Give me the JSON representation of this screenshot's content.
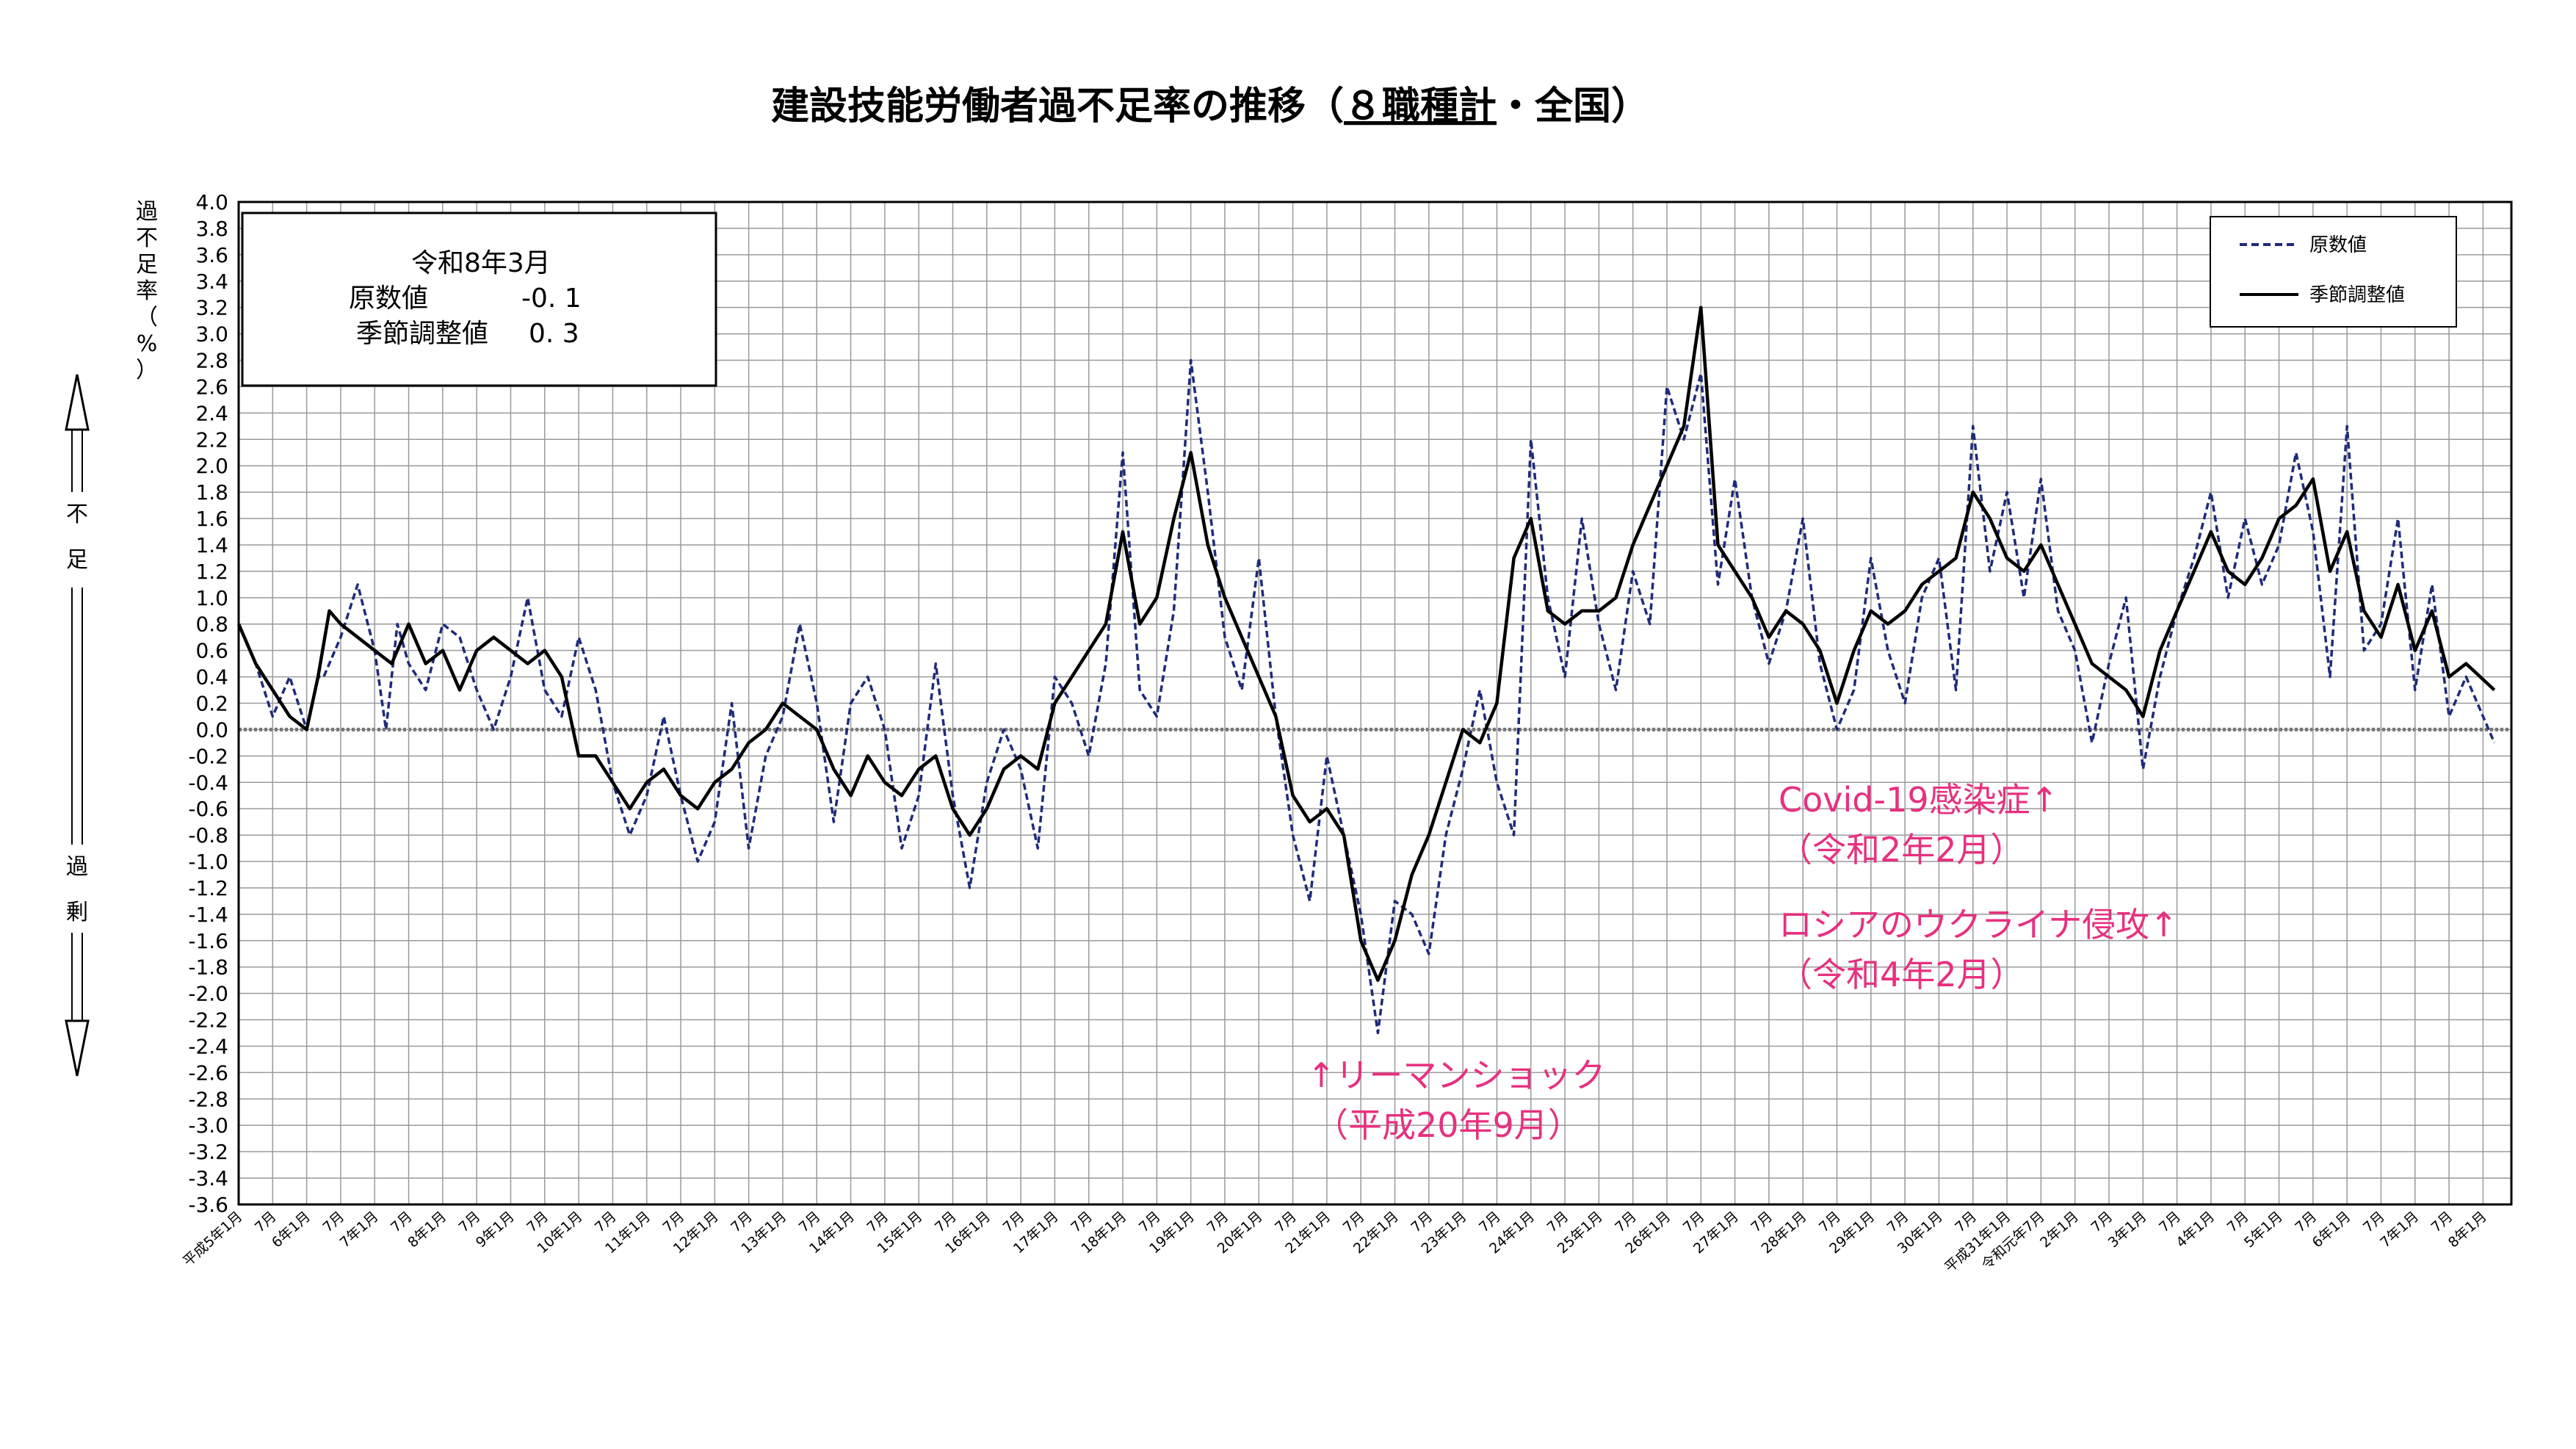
{
  "chart_data": {
    "type": "line",
    "title": "建設技能労働者過不足率の推移（８職種計・全国）",
    "title_main": "建設技能労働者過不足率の推移（",
    "title_underlined": "８職種計",
    "title_tail": "・全国）",
    "ylabel_chars": [
      "過",
      "不",
      "足",
      "率",
      "（",
      "%",
      "）"
    ],
    "side_labels": {
      "top": [
        "不",
        "足"
      ],
      "bottom": [
        "過",
        "剰"
      ]
    },
    "ylim": [
      -3.6,
      4.0
    ],
    "ytick_step": 0.2,
    "grid": true,
    "legend_position": "top-right",
    "info_box": {
      "period": "令和8年3月",
      "rows": [
        {
          "label": "原数値",
          "value": "-0. 1"
        },
        {
          "label": "季節調整値",
          "value": "0. 3"
        }
      ]
    },
    "x_start": "平成5年1月",
    "x_end": "令和8年3月",
    "x_tick_labels": [
      "平成5年1月",
      "7月",
      "6年1月",
      "7月",
      "7年1月",
      "7月",
      "8年1月",
      "7月",
      "9年1月",
      "7月",
      "10年1月",
      "7月",
      "11年1月",
      "7月",
      "12年1月",
      "7月",
      "13年1月",
      "7月",
      "14年1月",
      "7月",
      "15年1月",
      "7月",
      "16年1月",
      "7月",
      "17年1月",
      "7月",
      "18年1月",
      "7月",
      "19年1月",
      "7月",
      "20年1月",
      "7月",
      "21年1月",
      "7月",
      "22年1月",
      "7月",
      "23年1月",
      "7月",
      "24年1月",
      "7月",
      "25年1月",
      "7月",
      "26年1月",
      "7月",
      "27年1月",
      "7月",
      "28年1月",
      "7月",
      "29年1月",
      "7月",
      "30年1月",
      "7月",
      "平成31年1月",
      "令和元年7月",
      "2年1月",
      "7月",
      "3年1月",
      "7月",
      "4年1月",
      "7月",
      "5年1月",
      "7月",
      "6年1月",
      "7月",
      "7年1月",
      "7月",
      "8年1月"
    ],
    "annotations": [
      {
        "lines": [
          "↑リーマンショック",
          "（平成20年9月）"
        ],
        "date": "2008-09"
      },
      {
        "lines": [
          "Covid-19感染症↑",
          "（令和2年2月）"
        ],
        "date": "2020-02"
      },
      {
        "lines": [
          "ロシアのウクライナ侵攻↑",
          "（令和4年2月）"
        ],
        "date": "2022-02"
      }
    ],
    "series": [
      {
        "name": "原数値",
        "style": "dashed",
        "color": "#1f2a7a",
        "points": [
          [
            "1993-01",
            0.8
          ],
          [
            "1993-04",
            0.5
          ],
          [
            "1993-07",
            0.1
          ],
          [
            "1993-10",
            0.4
          ],
          [
            "1994-01",
            0.0
          ],
          [
            "1994-03",
            0.4
          ],
          [
            "1994-04",
            0.4
          ],
          [
            "1994-07",
            0.7
          ],
          [
            "1994-10",
            1.1
          ],
          [
            "1995-01",
            0.6
          ],
          [
            "1995-03",
            0.0
          ],
          [
            "1995-05",
            0.8
          ],
          [
            "1995-07",
            0.5
          ],
          [
            "1995-10",
            0.3
          ],
          [
            "1996-01",
            0.8
          ],
          [
            "1996-04",
            0.7
          ],
          [
            "1996-07",
            0.3
          ],
          [
            "1996-10",
            0.0
          ],
          [
            "1997-01",
            0.4
          ],
          [
            "1997-04",
            1.0
          ],
          [
            "1997-07",
            0.3
          ],
          [
            "1997-10",
            0.1
          ],
          [
            "1998-01",
            0.7
          ],
          [
            "1998-04",
            0.3
          ],
          [
            "1998-07",
            -0.4
          ],
          [
            "1998-10",
            -0.8
          ],
          [
            "1999-01",
            -0.5
          ],
          [
            "1999-04",
            0.1
          ],
          [
            "1999-07",
            -0.5
          ],
          [
            "1999-10",
            -1.0
          ],
          [
            "2000-01",
            -0.7
          ],
          [
            "2000-04",
            0.2
          ],
          [
            "2000-07",
            -0.9
          ],
          [
            "2000-10",
            -0.2
          ],
          [
            "2001-01",
            0.1
          ],
          [
            "2001-04",
            0.8
          ],
          [
            "2001-07",
            0.2
          ],
          [
            "2001-10",
            -0.7
          ],
          [
            "2002-01",
            0.2
          ],
          [
            "2002-04",
            0.4
          ],
          [
            "2002-07",
            0.0
          ],
          [
            "2002-10",
            -0.9
          ],
          [
            "2003-01",
            -0.5
          ],
          [
            "2003-04",
            0.5
          ],
          [
            "2003-07",
            -0.5
          ],
          [
            "2003-10",
            -1.2
          ],
          [
            "2004-01",
            -0.4
          ],
          [
            "2004-04",
            0.0
          ],
          [
            "2004-07",
            -0.3
          ],
          [
            "2004-10",
            -0.9
          ],
          [
            "2005-01",
            0.4
          ],
          [
            "2005-04",
            0.2
          ],
          [
            "2005-07",
            -0.2
          ],
          [
            "2005-10",
            0.5
          ],
          [
            "2006-01",
            2.1
          ],
          [
            "2006-04",
            0.3
          ],
          [
            "2006-07",
            0.1
          ],
          [
            "2006-10",
            0.9
          ],
          [
            "2007-01",
            2.8
          ],
          [
            "2007-04",
            1.8
          ],
          [
            "2007-07",
            0.7
          ],
          [
            "2007-10",
            0.3
          ],
          [
            "2008-01",
            1.3
          ],
          [
            "2008-04",
            0.1
          ],
          [
            "2008-07",
            -0.8
          ],
          [
            "2008-10",
            -1.3
          ],
          [
            "2009-01",
            -0.2
          ],
          [
            "2009-04",
            -0.8
          ],
          [
            "2009-07",
            -1.4
          ],
          [
            "2009-10",
            -2.3
          ],
          [
            "2010-01",
            -1.3
          ],
          [
            "2010-04",
            -1.4
          ],
          [
            "2010-07",
            -1.7
          ],
          [
            "2010-10",
            -0.8
          ],
          [
            "2011-01",
            -0.3
          ],
          [
            "2011-04",
            0.3
          ],
          [
            "2011-07",
            -0.4
          ],
          [
            "2011-10",
            -0.8
          ],
          [
            "2012-01",
            2.2
          ],
          [
            "2012-04",
            1.0
          ],
          [
            "2012-07",
            0.4
          ],
          [
            "2012-10",
            1.6
          ],
          [
            "2013-01",
            0.8
          ],
          [
            "2013-04",
            0.3
          ],
          [
            "2013-07",
            1.2
          ],
          [
            "2013-10",
            0.8
          ],
          [
            "2014-01",
            2.6
          ],
          [
            "2014-04",
            2.2
          ],
          [
            "2014-07",
            2.7
          ],
          [
            "2014-10",
            1.1
          ],
          [
            "2015-01",
            1.9
          ],
          [
            "2015-04",
            1.0
          ],
          [
            "2015-07",
            0.5
          ],
          [
            "2015-10",
            0.9
          ],
          [
            "2016-01",
            1.6
          ],
          [
            "2016-04",
            0.5
          ],
          [
            "2016-07",
            0.0
          ],
          [
            "2016-10",
            0.3
          ],
          [
            "2017-01",
            1.3
          ],
          [
            "2017-04",
            0.6
          ],
          [
            "2017-07",
            0.2
          ],
          [
            "2017-10",
            1.0
          ],
          [
            "2018-01",
            1.3
          ],
          [
            "2018-04",
            0.3
          ],
          [
            "2018-07",
            2.3
          ],
          [
            "2018-10",
            1.2
          ],
          [
            "2019-01",
            1.8
          ],
          [
            "2019-04",
            1.0
          ],
          [
            "2019-07",
            1.9
          ],
          [
            "2019-10",
            0.9
          ],
          [
            "2020-01",
            0.6
          ],
          [
            "2020-04",
            -0.1
          ],
          [
            "2020-07",
            0.5
          ],
          [
            "2020-10",
            1.0
          ],
          [
            "2021-01",
            -0.3
          ],
          [
            "2021-04",
            0.4
          ],
          [
            "2021-07",
            0.9
          ],
          [
            "2021-10",
            1.3
          ],
          [
            "2022-01",
            1.8
          ],
          [
            "2022-04",
            1.0
          ],
          [
            "2022-07",
            1.6
          ],
          [
            "2022-10",
            1.1
          ],
          [
            "2023-01",
            1.4
          ],
          [
            "2023-04",
            2.1
          ],
          [
            "2023-07",
            1.5
          ],
          [
            "2023-10",
            0.4
          ],
          [
            "2024-01",
            2.3
          ],
          [
            "2024-04",
            0.6
          ],
          [
            "2024-07",
            0.8
          ],
          [
            "2024-10",
            1.6
          ],
          [
            "2025-01",
            0.3
          ],
          [
            "2025-04",
            1.1
          ],
          [
            "2025-07",
            0.1
          ],
          [
            "2025-10",
            0.4
          ],
          [
            "2026-03",
            -0.1
          ]
        ]
      },
      {
        "name": "季節調整値",
        "style": "solid",
        "color": "#000000",
        "points": [
          [
            "1993-01",
            0.8
          ],
          [
            "1993-04",
            0.5
          ],
          [
            "1993-07",
            0.3
          ],
          [
            "1993-10",
            0.1
          ],
          [
            "1994-01",
            0.0
          ],
          [
            "1994-03",
            0.4
          ],
          [
            "1994-05",
            0.9
          ],
          [
            "1994-07",
            0.8
          ],
          [
            "1994-10",
            0.7
          ],
          [
            "1995-01",
            0.6
          ],
          [
            "1995-04",
            0.5
          ],
          [
            "1995-07",
            0.8
          ],
          [
            "1995-10",
            0.5
          ],
          [
            "1996-01",
            0.6
          ],
          [
            "1996-04",
            0.3
          ],
          [
            "1996-07",
            0.6
          ],
          [
            "1996-10",
            0.7
          ],
          [
            "1997-01",
            0.6
          ],
          [
            "1997-04",
            0.5
          ],
          [
            "1997-07",
            0.6
          ],
          [
            "1997-10",
            0.4
          ],
          [
            "1998-01",
            -0.2
          ],
          [
            "1998-04",
            -0.2
          ],
          [
            "1998-07",
            -0.4
          ],
          [
            "1998-10",
            -0.6
          ],
          [
            "1999-01",
            -0.4
          ],
          [
            "1999-04",
            -0.3
          ],
          [
            "1999-07",
            -0.5
          ],
          [
            "1999-10",
            -0.6
          ],
          [
            "2000-01",
            -0.4
          ],
          [
            "2000-04",
            -0.3
          ],
          [
            "2000-07",
            -0.1
          ],
          [
            "2000-10",
            0.0
          ],
          [
            "2001-01",
            0.2
          ],
          [
            "2001-04",
            0.1
          ],
          [
            "2001-07",
            0.0
          ],
          [
            "2001-10",
            -0.3
          ],
          [
            "2002-01",
            -0.5
          ],
          [
            "2002-04",
            -0.2
          ],
          [
            "2002-07",
            -0.4
          ],
          [
            "2002-10",
            -0.5
          ],
          [
            "2003-01",
            -0.3
          ],
          [
            "2003-04",
            -0.2
          ],
          [
            "2003-07",
            -0.6
          ],
          [
            "2003-10",
            -0.8
          ],
          [
            "2004-01",
            -0.6
          ],
          [
            "2004-04",
            -0.3
          ],
          [
            "2004-07",
            -0.2
          ],
          [
            "2004-10",
            -0.3
          ],
          [
            "2005-01",
            0.2
          ],
          [
            "2005-04",
            0.4
          ],
          [
            "2005-07",
            0.6
          ],
          [
            "2005-10",
            0.8
          ],
          [
            "2006-01",
            1.5
          ],
          [
            "2006-04",
            0.8
          ],
          [
            "2006-07",
            1.0
          ],
          [
            "2006-10",
            1.6
          ],
          [
            "2007-01",
            2.1
          ],
          [
            "2007-04",
            1.4
          ],
          [
            "2007-07",
            1.0
          ],
          [
            "2007-10",
            0.7
          ],
          [
            "2008-01",
            0.4
          ],
          [
            "2008-04",
            0.1
          ],
          [
            "2008-07",
            -0.5
          ],
          [
            "2008-10",
            -0.7
          ],
          [
            "2009-01",
            -0.6
          ],
          [
            "2009-04",
            -0.8
          ],
          [
            "2009-07",
            -1.6
          ],
          [
            "2009-10",
            -1.9
          ],
          [
            "2010-01",
            -1.6
          ],
          [
            "2010-04",
            -1.1
          ],
          [
            "2010-07",
            -0.8
          ],
          [
            "2010-10",
            -0.4
          ],
          [
            "2011-01",
            0.0
          ],
          [
            "2011-04",
            -0.1
          ],
          [
            "2011-07",
            0.2
          ],
          [
            "2011-10",
            1.3
          ],
          [
            "2012-01",
            1.6
          ],
          [
            "2012-04",
            0.9
          ],
          [
            "2012-07",
            0.8
          ],
          [
            "2012-10",
            0.9
          ],
          [
            "2013-01",
            0.9
          ],
          [
            "2013-04",
            1.0
          ],
          [
            "2013-07",
            1.4
          ],
          [
            "2013-10",
            1.7
          ],
          [
            "2014-01",
            2.0
          ],
          [
            "2014-04",
            2.3
          ],
          [
            "2014-07",
            3.2
          ],
          [
            "2014-10",
            1.4
          ],
          [
            "2015-01",
            1.2
          ],
          [
            "2015-04",
            1.0
          ],
          [
            "2015-07",
            0.7
          ],
          [
            "2015-10",
            0.9
          ],
          [
            "2016-01",
            0.8
          ],
          [
            "2016-04",
            0.6
          ],
          [
            "2016-07",
            0.2
          ],
          [
            "2016-10",
            0.6
          ],
          [
            "2017-01",
            0.9
          ],
          [
            "2017-04",
            0.8
          ],
          [
            "2017-07",
            0.9
          ],
          [
            "2017-10",
            1.1
          ],
          [
            "2018-01",
            1.2
          ],
          [
            "2018-04",
            1.3
          ],
          [
            "2018-07",
            1.8
          ],
          [
            "2018-10",
            1.6
          ],
          [
            "2019-01",
            1.3
          ],
          [
            "2019-04",
            1.2
          ],
          [
            "2019-07",
            1.4
          ],
          [
            "2019-10",
            1.1
          ],
          [
            "2020-01",
            0.8
          ],
          [
            "2020-04",
            0.5
          ],
          [
            "2020-07",
            0.4
          ],
          [
            "2020-10",
            0.3
          ],
          [
            "2021-01",
            0.1
          ],
          [
            "2021-04",
            0.6
          ],
          [
            "2021-07",
            0.9
          ],
          [
            "2021-10",
            1.2
          ],
          [
            "2022-01",
            1.5
          ],
          [
            "2022-04",
            1.2
          ],
          [
            "2022-07",
            1.1
          ],
          [
            "2022-10",
            1.3
          ],
          [
            "2023-01",
            1.6
          ],
          [
            "2023-04",
            1.7
          ],
          [
            "2023-07",
            1.9
          ],
          [
            "2023-10",
            1.2
          ],
          [
            "2024-01",
            1.5
          ],
          [
            "2024-04",
            0.9
          ],
          [
            "2024-07",
            0.7
          ],
          [
            "2024-10",
            1.1
          ],
          [
            "2025-01",
            0.6
          ],
          [
            "2025-04",
            0.9
          ],
          [
            "2025-07",
            0.4
          ],
          [
            "2025-10",
            0.5
          ],
          [
            "2026-03",
            0.3
          ]
        ]
      }
    ]
  }
}
